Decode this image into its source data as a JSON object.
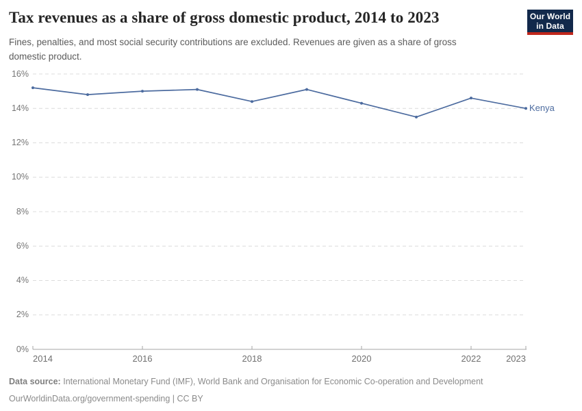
{
  "header": {
    "title": "Tax revenues as a share of gross domestic product, 2014 to 2023",
    "subtitle_lines": [
      "Fines, penalties, and most social security contributions are excluded. Revenues are given as a share of gross",
      "domestic product."
    ],
    "logo": {
      "line1": "Our World",
      "line2": "in Data"
    }
  },
  "chart_data": {
    "type": "line",
    "title": "Tax revenues as a share of gross domestic product, 2014 to 2023",
    "x": [
      2014,
      2015,
      2016,
      2017,
      2018,
      2019,
      2020,
      2021,
      2022,
      2023
    ],
    "series": [
      {
        "name": "Kenya",
        "color": "#4C6B9F",
        "values": [
          15.2,
          14.8,
          15.0,
          15.1,
          14.4,
          15.1,
          14.3,
          13.5,
          14.6,
          14.0
        ]
      }
    ],
    "unit": "%",
    "ylim": [
      0,
      16
    ],
    "yticks": [
      0,
      2,
      4,
      6,
      8,
      10,
      12,
      14,
      16
    ],
    "ytick_labels": [
      "0%",
      "2%",
      "4%",
      "6%",
      "8%",
      "10%",
      "12%",
      "14%",
      "16%"
    ],
    "xticks": [
      2014,
      2016,
      2018,
      2020,
      2022,
      2023
    ],
    "xtick_labels": [
      "2014",
      "2016",
      "2018",
      "2020",
      "2022",
      "2023"
    ],
    "grid": "horizontal-dashed",
    "legend_position": "end-of-line-label"
  },
  "footer": {
    "source_label": "Data source:",
    "source_text": "International Monetary Fund (IMF), World Bank and Organisation for Economic Co-operation and Development",
    "line2": "OurWorldinData.org/government-spending | CC BY"
  },
  "colors": {
    "line": "#4C6B9F",
    "series_label": "#4C6B9F",
    "gridline": "#dcdcdc",
    "axis": "#a5a5a5",
    "tick_label": "#6f6f6f",
    "logo_bg": "#12294b",
    "logo_bar": "#c0271c",
    "title": "#252525",
    "subtitle": "#5b5b5b",
    "footer": "#8a8a8a"
  }
}
